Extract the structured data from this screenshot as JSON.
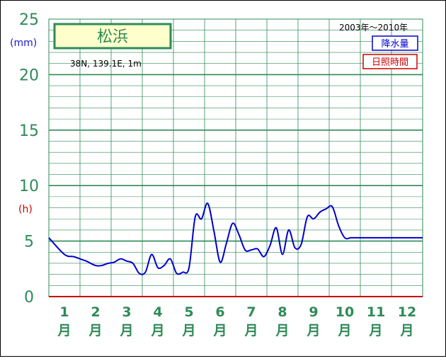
{
  "chart_data": {
    "type": "line",
    "title": "松浜",
    "subtitle": "38N,  139.1E,  1m",
    "period": "2003年〜2010年",
    "unit_primary": "(mm)",
    "unit_secondary": "(h)",
    "legend": [
      {
        "label": "降水量",
        "color": "#0000cc"
      },
      {
        "label": "日照時間",
        "color": "#cc0000"
      }
    ],
    "ylim": [
      0,
      25
    ],
    "yticks": [
      "0",
      "5",
      "10",
      "15",
      "20",
      "25"
    ],
    "months": [
      {
        "num": "1",
        "suffix": "月"
      },
      {
        "num": "2",
        "suffix": "月"
      },
      {
        "num": "3",
        "suffix": "月"
      },
      {
        "num": "4",
        "suffix": "月"
      },
      {
        "num": "5",
        "suffix": "月"
      },
      {
        "num": "6",
        "suffix": "月"
      },
      {
        "num": "7",
        "suffix": "月"
      },
      {
        "num": "8",
        "suffix": "月"
      },
      {
        "num": "9",
        "suffix": "月"
      },
      {
        "num": "10",
        "suffix": "月"
      },
      {
        "num": "11",
        "suffix": "月"
      },
      {
        "num": "12",
        "suffix": "月"
      }
    ],
    "grid": true,
    "xlim": [
      0,
      12
    ],
    "series": [
      {
        "color": "#0000cc",
        "x": [
          0,
          0.5,
          0.8,
          1.0,
          1.2,
          1.5,
          1.7,
          1.9,
          2.1,
          2.3,
          2.5,
          2.7,
          2.9,
          3.1,
          3.3,
          3.5,
          3.7,
          3.9,
          4.1,
          4.3,
          4.5,
          4.7,
          4.9,
          5.1,
          5.3,
          5.5,
          5.7,
          5.9,
          6.1,
          6.3,
          6.5,
          6.7,
          6.9,
          7.1,
          7.3,
          7.5,
          7.7,
          7.9,
          8.1,
          8.3,
          8.5,
          8.7,
          8.9,
          9.1,
          9.3,
          9.5,
          9.7,
          9.9,
          10.1,
          10.3,
          10.5,
          10.7,
          10.9,
          11.1,
          11.3,
          11.5,
          11.7,
          11.9,
          12.0
        ],
        "y": [
          5.3,
          3.8,
          3.6,
          3.4,
          3.2,
          2.8,
          2.8,
          3.0,
          3.1,
          3.4,
          3.2,
          3.0,
          2.1,
          2.2,
          3.8,
          2.6,
          2.8,
          3.4,
          2.1,
          2.2,
          2.6,
          7.2,
          7.0,
          8.4,
          5.9,
          3.1,
          4.8,
          6.6,
          5.6,
          4.2,
          4.2,
          4.3,
          3.6,
          4.6,
          6.2,
          3.8,
          6.0,
          4.4,
          4.7,
          7.2,
          7.0,
          7.6,
          7.9,
          8.1,
          6.4,
          5.3,
          5.3,
          5.3,
          5.3,
          5.3,
          5.3,
          5.3,
          5.3,
          5.3,
          5.3,
          5.3,
          5.3,
          5.3,
          5.3
        ]
      }
    ]
  }
}
